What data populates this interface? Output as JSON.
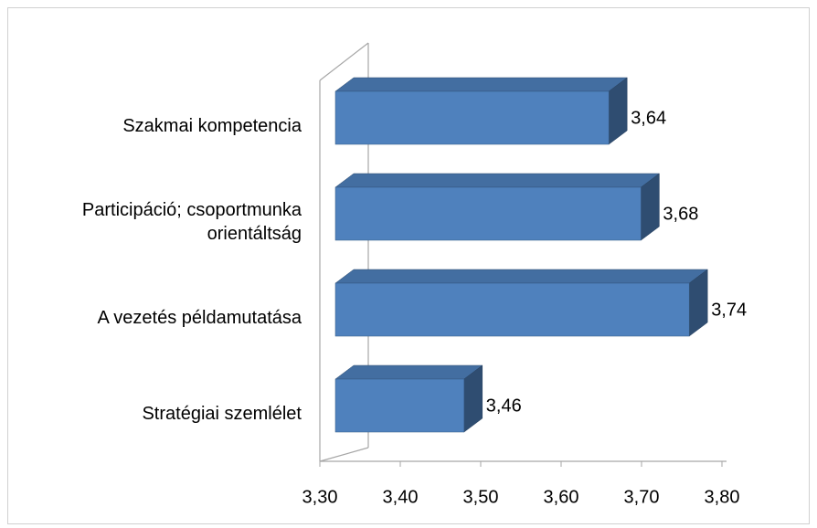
{
  "chart_data": {
    "type": "bar3d_horizontal",
    "categories": [
      "Szakmai kompetencia",
      "Participáció; csoportmunka orientáltság",
      "A vezetés példamutatása",
      "Stratégiai szemlélet"
    ],
    "values": [
      3.64,
      3.68,
      3.74,
      3.46
    ],
    "value_labels": [
      "3,64",
      "3,68",
      "3,74",
      "3,46"
    ],
    "color": "#4f81bd",
    "xlim": [
      3.3,
      3.8
    ],
    "xticks": [
      {
        "value": 3.3,
        "label": "3,30"
      },
      {
        "value": 3.4,
        "label": "3,40"
      },
      {
        "value": 3.5,
        "label": "3,50"
      },
      {
        "value": 3.6,
        "label": "3,60"
      },
      {
        "value": 3.7,
        "label": "3,70"
      },
      {
        "value": 3.8,
        "label": "3,80"
      }
    ]
  }
}
